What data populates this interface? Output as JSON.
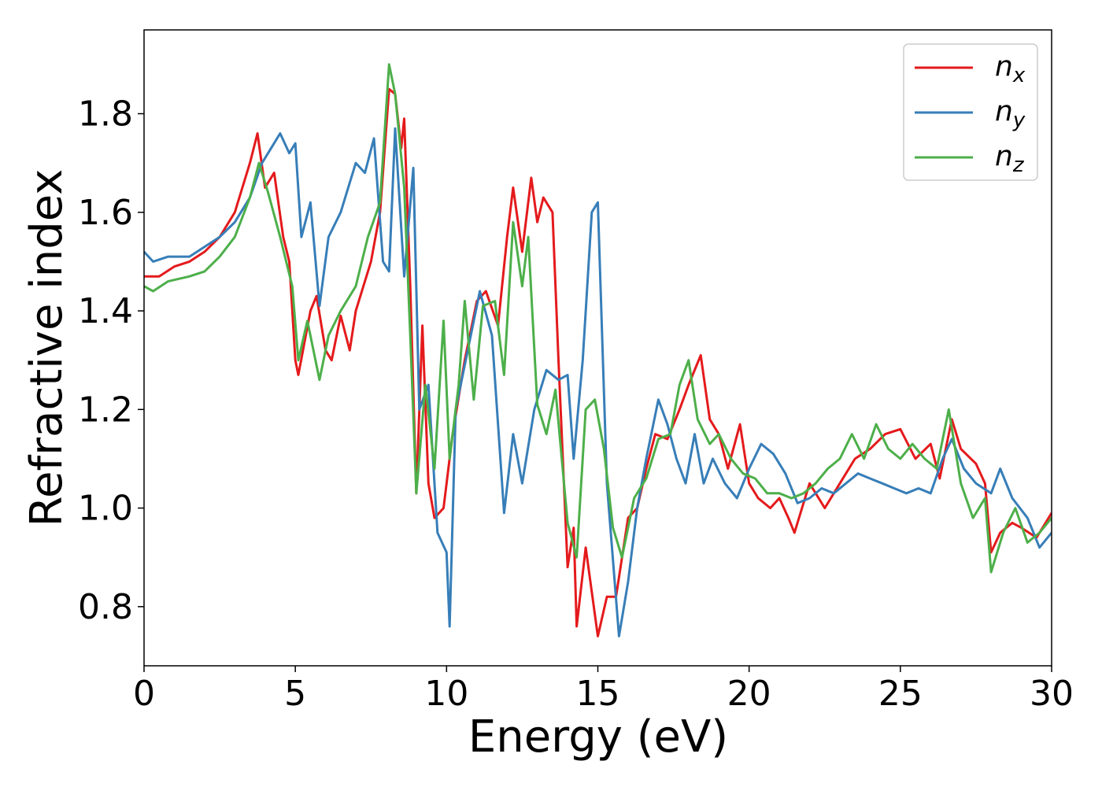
{
  "chart_data": {
    "type": "line",
    "title": "",
    "xlabel": "Energy (eV)",
    "ylabel": "Refractive index",
    "xlim": [
      0,
      30
    ],
    "ylim": [
      0.68,
      1.97
    ],
    "xticks": [
      0,
      5,
      10,
      15,
      20,
      25,
      30
    ],
    "yticks": [
      0.8,
      1.0,
      1.2,
      1.4,
      1.6,
      1.8
    ],
    "xtick_labels": [
      "0",
      "5",
      "10",
      "15",
      "20",
      "25",
      "30"
    ],
    "ytick_labels": [
      "0.8",
      "1.0",
      "1.2",
      "1.4",
      "1.6",
      "1.8"
    ],
    "grid": false,
    "legend": "top-right",
    "series": [
      {
        "name": "n",
        "sub": "x",
        "color": "#e41a1c",
        "points": [
          [
            0,
            1.47
          ],
          [
            0.5,
            1.47
          ],
          [
            1,
            1.49
          ],
          [
            1.5,
            1.5
          ],
          [
            2,
            1.52
          ],
          [
            2.5,
            1.55
          ],
          [
            3,
            1.6
          ],
          [
            3.5,
            1.7
          ],
          [
            3.75,
            1.76
          ],
          [
            4,
            1.65
          ],
          [
            4.3,
            1.68
          ],
          [
            4.6,
            1.55
          ],
          [
            4.8,
            1.5
          ],
          [
            5,
            1.3
          ],
          [
            5.1,
            1.27
          ],
          [
            5.5,
            1.4
          ],
          [
            5.7,
            1.43
          ],
          [
            6,
            1.32
          ],
          [
            6.2,
            1.3
          ],
          [
            6.5,
            1.39
          ],
          [
            6.8,
            1.32
          ],
          [
            7,
            1.4
          ],
          [
            7.5,
            1.5
          ],
          [
            7.8,
            1.6
          ],
          [
            8.1,
            1.85
          ],
          [
            8.3,
            1.84
          ],
          [
            8.5,
            1.73
          ],
          [
            8.6,
            1.79
          ],
          [
            8.8,
            1.45
          ],
          [
            9,
            1.03
          ],
          [
            9.2,
            1.37
          ],
          [
            9.4,
            1.05
          ],
          [
            9.6,
            0.98
          ],
          [
            9.9,
            1.0
          ],
          [
            10.2,
            1.15
          ],
          [
            10.6,
            1.3
          ],
          [
            11,
            1.42
          ],
          [
            11.3,
            1.44
          ],
          [
            11.7,
            1.37
          ],
          [
            12,
            1.55
          ],
          [
            12.2,
            1.65
          ],
          [
            12.5,
            1.52
          ],
          [
            12.8,
            1.67
          ],
          [
            13,
            1.58
          ],
          [
            13.2,
            1.63
          ],
          [
            13.5,
            1.6
          ],
          [
            13.7,
            1.3
          ],
          [
            14,
            0.88
          ],
          [
            14.2,
            0.96
          ],
          [
            14.3,
            0.76
          ],
          [
            14.6,
            0.92
          ],
          [
            15,
            0.74
          ],
          [
            15.3,
            0.82
          ],
          [
            15.6,
            0.82
          ],
          [
            16,
            0.98
          ],
          [
            16.3,
            1.0
          ],
          [
            16.6,
            1.08
          ],
          [
            16.9,
            1.15
          ],
          [
            17.3,
            1.14
          ],
          [
            17.7,
            1.2
          ],
          [
            18,
            1.25
          ],
          [
            18.4,
            1.31
          ],
          [
            18.7,
            1.18
          ],
          [
            19,
            1.15
          ],
          [
            19.3,
            1.08
          ],
          [
            19.7,
            1.17
          ],
          [
            20,
            1.05
          ],
          [
            20.3,
            1.02
          ],
          [
            20.7,
            1.0
          ],
          [
            21,
            1.02
          ],
          [
            21.3,
            0.98
          ],
          [
            21.5,
            0.95
          ],
          [
            22,
            1.05
          ],
          [
            22.5,
            1.0
          ],
          [
            23,
            1.05
          ],
          [
            23.5,
            1.1
          ],
          [
            24,
            1.12
          ],
          [
            24.5,
            1.15
          ],
          [
            25,
            1.16
          ],
          [
            25.5,
            1.1
          ],
          [
            26,
            1.13
          ],
          [
            26.3,
            1.06
          ],
          [
            26.7,
            1.18
          ],
          [
            27,
            1.12
          ],
          [
            27.5,
            1.09
          ],
          [
            27.8,
            1.05
          ],
          [
            28,
            0.91
          ],
          [
            28.3,
            0.95
          ],
          [
            28.7,
            0.97
          ],
          [
            29,
            0.96
          ],
          [
            29.5,
            0.94
          ],
          [
            30,
            0.99
          ]
        ]
      },
      {
        "name": "n",
        "sub": "y",
        "color": "#377eb8",
        "points": [
          [
            0,
            1.52
          ],
          [
            0.3,
            1.5
          ],
          [
            0.8,
            1.51
          ],
          [
            1.5,
            1.51
          ],
          [
            2,
            1.53
          ],
          [
            2.5,
            1.55
          ],
          [
            3,
            1.58
          ],
          [
            3.5,
            1.63
          ],
          [
            3.9,
            1.7
          ],
          [
            4.2,
            1.73
          ],
          [
            4.5,
            1.76
          ],
          [
            4.8,
            1.72
          ],
          [
            5,
            1.74
          ],
          [
            5.2,
            1.55
          ],
          [
            5.5,
            1.62
          ],
          [
            5.8,
            1.41
          ],
          [
            6.1,
            1.55
          ],
          [
            6.5,
            1.6
          ],
          [
            7,
            1.7
          ],
          [
            7.3,
            1.68
          ],
          [
            7.6,
            1.75
          ],
          [
            7.9,
            1.5
          ],
          [
            8.1,
            1.48
          ],
          [
            8.3,
            1.77
          ],
          [
            8.6,
            1.47
          ],
          [
            8.9,
            1.69
          ],
          [
            9.1,
            1.2
          ],
          [
            9.4,
            1.25
          ],
          [
            9.7,
            0.95
          ],
          [
            10,
            0.91
          ],
          [
            10.1,
            0.76
          ],
          [
            10.3,
            1.2
          ],
          [
            10.8,
            1.35
          ],
          [
            11.1,
            1.44
          ],
          [
            11.5,
            1.35
          ],
          [
            11.9,
            0.99
          ],
          [
            12.2,
            1.15
          ],
          [
            12.5,
            1.05
          ],
          [
            12.9,
            1.2
          ],
          [
            13.3,
            1.28
          ],
          [
            13.7,
            1.26
          ],
          [
            14,
            1.27
          ],
          [
            14.2,
            1.1
          ],
          [
            14.5,
            1.3
          ],
          [
            14.8,
            1.6
          ],
          [
            15,
            1.62
          ],
          [
            15.3,
            1.05
          ],
          [
            15.7,
            0.74
          ],
          [
            16,
            0.85
          ],
          [
            16.3,
            1.0
          ],
          [
            16.6,
            1.1
          ],
          [
            17,
            1.22
          ],
          [
            17.3,
            1.17
          ],
          [
            17.6,
            1.1
          ],
          [
            17.9,
            1.05
          ],
          [
            18.2,
            1.15
          ],
          [
            18.5,
            1.05
          ],
          [
            18.8,
            1.1
          ],
          [
            19.2,
            1.05
          ],
          [
            19.6,
            1.02
          ],
          [
            20,
            1.08
          ],
          [
            20.4,
            1.13
          ],
          [
            20.8,
            1.11
          ],
          [
            21.2,
            1.07
          ],
          [
            21.6,
            1.01
          ],
          [
            22,
            1.02
          ],
          [
            22.4,
            1.04
          ],
          [
            22.8,
            1.03
          ],
          [
            23.2,
            1.05
          ],
          [
            23.6,
            1.07
          ],
          [
            24,
            1.06
          ],
          [
            24.4,
            1.05
          ],
          [
            24.8,
            1.04
          ],
          [
            25.2,
            1.03
          ],
          [
            25.6,
            1.04
          ],
          [
            26,
            1.03
          ],
          [
            26.4,
            1.1
          ],
          [
            26.7,
            1.14
          ],
          [
            27.1,
            1.08
          ],
          [
            27.5,
            1.05
          ],
          [
            28,
            1.03
          ],
          [
            28.3,
            1.08
          ],
          [
            28.7,
            1.02
          ],
          [
            29.2,
            0.98
          ],
          [
            29.6,
            0.92
          ],
          [
            30,
            0.95
          ]
        ]
      },
      {
        "name": "n",
        "sub": "z",
        "color": "#4daf4a",
        "points": [
          [
            0,
            1.45
          ],
          [
            0.3,
            1.44
          ],
          [
            0.8,
            1.46
          ],
          [
            1.5,
            1.47
          ],
          [
            2,
            1.48
          ],
          [
            2.5,
            1.51
          ],
          [
            3,
            1.55
          ],
          [
            3.5,
            1.63
          ],
          [
            3.8,
            1.7
          ],
          [
            4.1,
            1.64
          ],
          [
            4.5,
            1.55
          ],
          [
            4.9,
            1.45
          ],
          [
            5.1,
            1.3
          ],
          [
            5.4,
            1.38
          ],
          [
            5.8,
            1.26
          ],
          [
            6.1,
            1.35
          ],
          [
            6.5,
            1.4
          ],
          [
            7,
            1.45
          ],
          [
            7.4,
            1.55
          ],
          [
            7.8,
            1.62
          ],
          [
            8.1,
            1.9
          ],
          [
            8.3,
            1.84
          ],
          [
            8.6,
            1.65
          ],
          [
            8.8,
            1.35
          ],
          [
            9,
            1.03
          ],
          [
            9.3,
            1.25
          ],
          [
            9.6,
            1.08
          ],
          [
            9.9,
            1.38
          ],
          [
            10.1,
            1.1
          ],
          [
            10.4,
            1.25
          ],
          [
            10.6,
            1.42
          ],
          [
            10.9,
            1.22
          ],
          [
            11.2,
            1.41
          ],
          [
            11.6,
            1.42
          ],
          [
            11.9,
            1.27
          ],
          [
            12.2,
            1.58
          ],
          [
            12.5,
            1.45
          ],
          [
            12.7,
            1.55
          ],
          [
            13,
            1.21
          ],
          [
            13.3,
            1.15
          ],
          [
            13.6,
            1.24
          ],
          [
            14,
            0.97
          ],
          [
            14.3,
            0.9
          ],
          [
            14.6,
            1.2
          ],
          [
            14.9,
            1.22
          ],
          [
            15.2,
            1.12
          ],
          [
            15.5,
            0.96
          ],
          [
            15.8,
            0.9
          ],
          [
            16.2,
            1.02
          ],
          [
            16.6,
            1.06
          ],
          [
            17,
            1.14
          ],
          [
            17.4,
            1.15
          ],
          [
            17.7,
            1.25
          ],
          [
            18,
            1.3
          ],
          [
            18.3,
            1.18
          ],
          [
            18.7,
            1.13
          ],
          [
            19,
            1.15
          ],
          [
            19.4,
            1.1
          ],
          [
            19.8,
            1.07
          ],
          [
            20.2,
            1.06
          ],
          [
            20.6,
            1.03
          ],
          [
            21,
            1.03
          ],
          [
            21.4,
            1.02
          ],
          [
            21.8,
            1.03
          ],
          [
            22.2,
            1.05
          ],
          [
            22.6,
            1.08
          ],
          [
            23,
            1.1
          ],
          [
            23.4,
            1.15
          ],
          [
            23.8,
            1.1
          ],
          [
            24.2,
            1.17
          ],
          [
            24.6,
            1.12
          ],
          [
            25,
            1.1
          ],
          [
            25.4,
            1.13
          ],
          [
            25.8,
            1.1
          ],
          [
            26.2,
            1.08
          ],
          [
            26.6,
            1.2
          ],
          [
            27,
            1.05
          ],
          [
            27.4,
            0.98
          ],
          [
            27.8,
            1.02
          ],
          [
            28,
            0.87
          ],
          [
            28.4,
            0.95
          ],
          [
            28.8,
            1.0
          ],
          [
            29.2,
            0.93
          ],
          [
            29.6,
            0.95
          ],
          [
            30,
            0.98
          ]
        ]
      }
    ]
  }
}
